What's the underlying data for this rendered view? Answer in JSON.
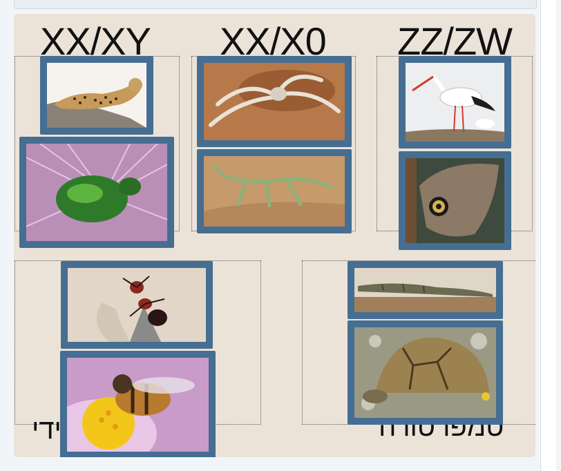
{
  "columns": {
    "col1": "XX/XY",
    "col2": "XX/X0",
    "col3": "ZZ/ZW"
  },
  "zones": {
    "bottom_left": "הפלואידי",
    "bottom_right": "טמפרטורה"
  },
  "cards": [
    {
      "subject": "leopard"
    },
    {
      "subject": "green-beetle-on-thistle"
    },
    {
      "subject": "spider"
    },
    {
      "subject": "mantis"
    },
    {
      "subject": "stork"
    },
    {
      "subject": "owl-butterfly"
    },
    {
      "subject": "ant"
    },
    {
      "subject": "honeybee-on-flower"
    },
    {
      "subject": "crocodile"
    },
    {
      "subject": "tortoise"
    }
  ]
}
